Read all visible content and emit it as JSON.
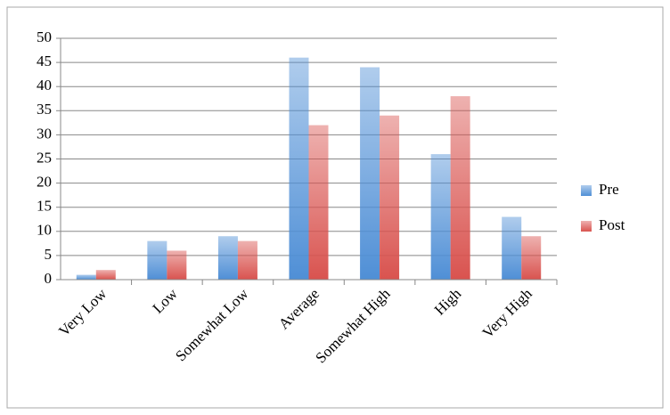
{
  "chart_data": {
    "type": "bar",
    "categories": [
      "Very Low",
      "Low",
      "Somewhat Low",
      "Average",
      "Somewhat High",
      "High",
      "Very High"
    ],
    "series": [
      {
        "name": "Pre",
        "color": "#4f8fd6",
        "values": [
          1,
          8,
          9,
          46,
          44,
          26,
          13
        ]
      },
      {
        "name": "Post",
        "color": "#d9534f",
        "values": [
          2,
          6,
          8,
          32,
          34,
          38,
          9
        ]
      }
    ],
    "ylim": [
      0,
      50
    ],
    "yticks": [
      0,
      5,
      10,
      15,
      20,
      25,
      30,
      35,
      40,
      45,
      50
    ],
    "grid": true,
    "legend": "right"
  }
}
